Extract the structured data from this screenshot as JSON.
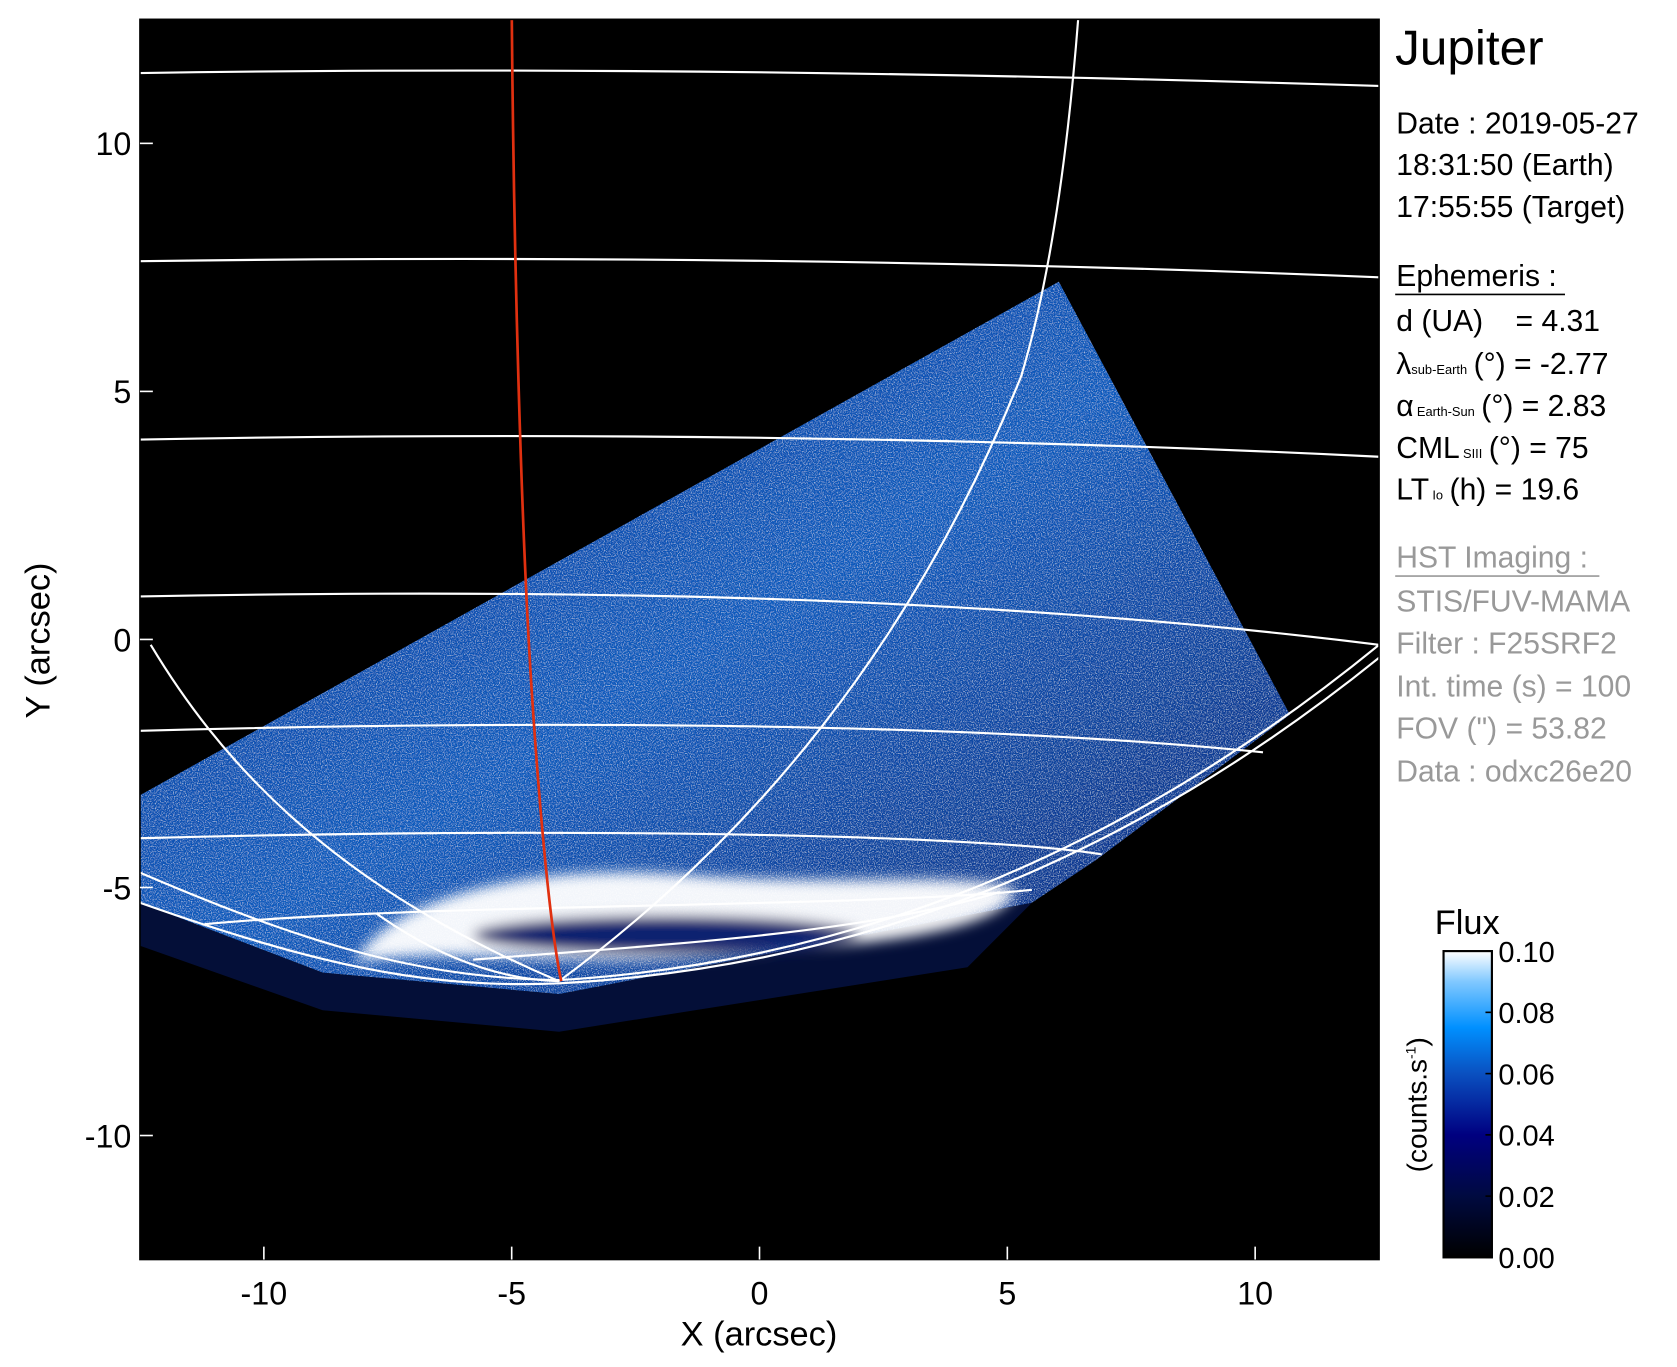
{
  "chart_data": {
    "type": "heatmap",
    "title": "Jupiter",
    "xlabel": "X (arcsec)",
    "ylabel": "Y (arcsec)",
    "xlim": [
      -12.5,
      12.5
    ],
    "ylim": [
      -12.5,
      12.5
    ],
    "xticks": [
      "-10",
      "-5",
      "0",
      "5",
      "10"
    ],
    "xtick_values": [
      -10,
      -5,
      0,
      5,
      10
    ],
    "yticks": [
      "10",
      "5",
      "0",
      "-5",
      "-10"
    ],
    "ytick_values": [
      10,
      5,
      0,
      -5,
      -10
    ],
    "grid": "planetographic latitude/longitude grid (white)",
    "highlight_meridian_color": "#e03010",
    "colorbar": {
      "title": "Flux",
      "unit_label": "(counts.s",
      "unit_exponent": "-1",
      "unit_close": ")",
      "range": [
        0.0,
        0.1
      ],
      "ticks": [
        "0.00",
        "0.02",
        "0.04",
        "0.06",
        "0.08",
        "0.10"
      ],
      "tick_values": [
        0.0,
        0.02,
        0.04,
        0.06,
        0.08,
        0.1
      ],
      "colors": [
        "#000000",
        "#000a40",
        "#000080",
        "#0a50c0",
        "#0090ff",
        "#80c8ff",
        "#ffffff"
      ]
    }
  },
  "info": {
    "date": "Date : 2019-05-27",
    "time_earth": "18:31:50 (Earth)",
    "time_target": "17:55:55 (Target)",
    "ephemeris_title": "Ephemeris :",
    "d_label": "d (UA)",
    "d_value": "= 4.31",
    "lambda_symbol": "λ",
    "lambda_sub": "sub-Earth",
    "lambda_value": "(°) = -2.77",
    "alpha_symbol": "α",
    "alpha_sub": "Earth-Sun",
    "alpha_value": "(°) = 2.83",
    "cml_symbol": "CML",
    "cml_sub": "SIII",
    "cml_value": "(°) = 75",
    "lt_symbol": "LT",
    "lt_sub": "Io",
    "lt_value": "(h) = 19.6",
    "hst_title": "HST Imaging :",
    "instrument": "STIS/FUV-MAMA",
    "filter": "Filter : F25SRF2",
    "int_time": "Int. time (s) = 100",
    "fov": "FOV (\") = 53.82",
    "dataset": "Data : odxc26e20"
  }
}
